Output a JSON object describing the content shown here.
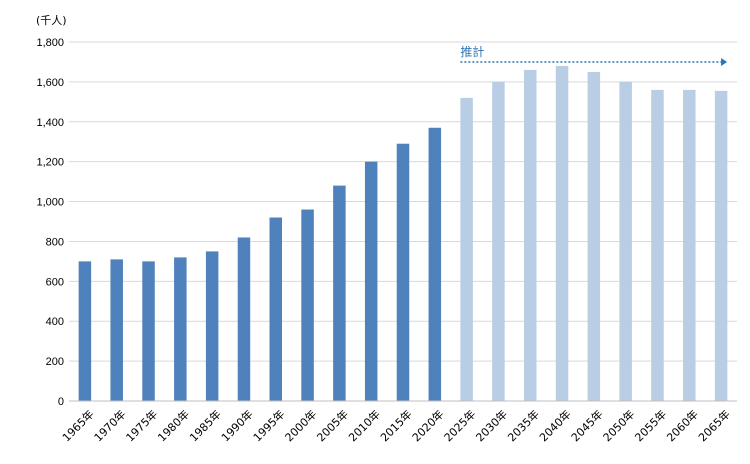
{
  "chart_data": {
    "type": "bar",
    "unit_label": "(千人)",
    "categories": [
      "1965年",
      "1970年",
      "1975年",
      "1980年",
      "1985年",
      "1990年",
      "1995年",
      "2000年",
      "2005年",
      "2010年",
      "2015年",
      "2020年",
      "2025年",
      "2030年",
      "2035年",
      "2040年",
      "2045年",
      "2050年",
      "2055年",
      "2060年",
      "2065年"
    ],
    "series": [
      {
        "values": [
          700,
          710,
          700,
          720,
          750,
          820,
          920,
          960,
          1080,
          1200,
          1290,
          1370,
          1520,
          1600,
          1660,
          1680,
          1650,
          1600,
          1560,
          1560,
          1555
        ]
      }
    ],
    "projection_start_index": 12,
    "annotation": "推計",
    "ylim": [
      0,
      1800
    ],
    "yticks": [
      0,
      200,
      400,
      600,
      800,
      1000,
      1200,
      1400,
      1600,
      1800
    ],
    "ytick_labels": [
      "0",
      "200",
      "400",
      "600",
      "800",
      "1,000",
      "1,200",
      "1,400",
      "1,600",
      "1,800"
    ],
    "grid": true,
    "colors": {
      "actual": "#4f81bd",
      "projected": "#b9cde5",
      "annotation": "#2e75b6",
      "grid": "#d9d9d9",
      "axis": "#bfbfbf"
    }
  }
}
